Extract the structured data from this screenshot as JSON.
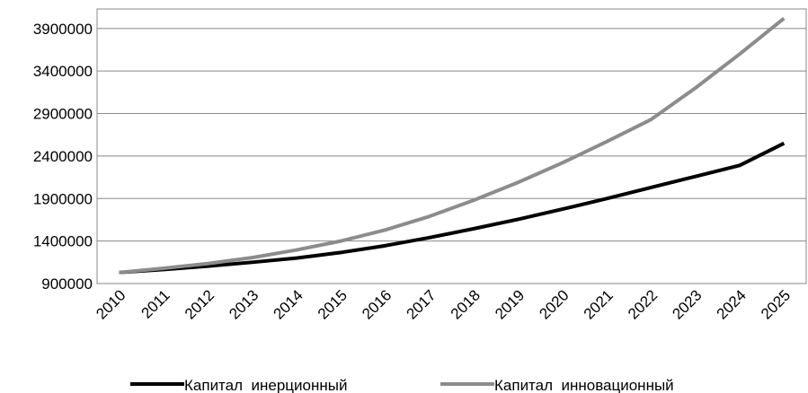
{
  "chart_data": {
    "type": "line",
    "categories": [
      "2010",
      "2011",
      "2012",
      "2013",
      "2014",
      "2015",
      "2016",
      "2017",
      "2018",
      "2019",
      "2020",
      "2021",
      "2022",
      "2023",
      "2024",
      "2025"
    ],
    "series": [
      {
        "name": "Капитал  инерционный",
        "color": "#000000",
        "values": [
          1030000,
          1065000,
          1105000,
          1150000,
          1200000,
          1265000,
          1345000,
          1440000,
          1545000,
          1655000,
          1775000,
          1900000,
          2030000,
          2160000,
          2290000,
          2550000
        ]
      },
      {
        "name": "Капитал  инновационный",
        "color": "#8c8c8c",
        "values": [
          1030000,
          1080000,
          1135000,
          1205000,
          1295000,
          1400000,
          1530000,
          1690000,
          1880000,
          2090000,
          2320000,
          2570000,
          2830000,
          3200000,
          3600000,
          4020000
        ]
      }
    ],
    "ylim": [
      900000,
      4130000
    ],
    "yticks": [
      900000,
      1400000,
      1900000,
      2400000,
      2900000,
      3400000,
      3900000
    ],
    "grid": true,
    "legend": "bottom"
  }
}
